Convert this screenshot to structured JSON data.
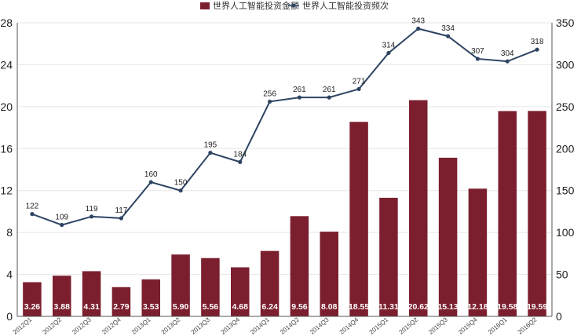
{
  "chart_data": {
    "type": "bar+line",
    "title": "",
    "categories": [
      "2012Q1",
      "2012Q2",
      "2012Q3",
      "2012Q4",
      "2013Q1",
      "2013Q2",
      "2013Q3",
      "2013Q4",
      "2014Q1",
      "2014Q2",
      "2014Q3",
      "2014Q4",
      "2015Q1",
      "2015Q2",
      "2015Q3",
      "2015Q4",
      "2016Q1",
      "2016Q2"
    ],
    "series": [
      {
        "name": "世界人工智能投资金额",
        "type": "bar",
        "axis": "left",
        "color": "#7b1f2e",
        "values": [
          3.26,
          3.88,
          4.31,
          2.79,
          3.53,
          5.9,
          5.56,
          4.68,
          6.24,
          9.56,
          8.08,
          18.55,
          11.31,
          20.62,
          15.13,
          12.18,
          19.58,
          19.59
        ],
        "labels": [
          "3.26",
          "3.88",
          "4.31",
          "2.79",
          "3.53",
          "5.90",
          "5.56",
          "4.68",
          "6.24",
          "9.56",
          "8.08",
          "18.55",
          "11.31",
          "20.62",
          "15.13",
          "12.18",
          "19.58",
          "19.59"
        ]
      },
      {
        "name": "世界人工智能投资频次",
        "type": "line",
        "axis": "right",
        "color": "#2e4463",
        "values": [
          122,
          109,
          119,
          117,
          160,
          150,
          195,
          184,
          256,
          261,
          261,
          271,
          314,
          343,
          334,
          307,
          304,
          318
        ],
        "labels": [
          "122",
          "109",
          "119",
          "117",
          "160",
          "150",
          "195",
          "184",
          "256",
          "261",
          "261",
          "271",
          "314",
          "343",
          "334",
          "307",
          "304",
          "318"
        ]
      }
    ],
    "y_left": {
      "min": 0,
      "max": 28,
      "ticks": [
        "0",
        "4",
        "8",
        "12",
        "16",
        "20",
        "24",
        "28"
      ]
    },
    "y_right": {
      "min": 0,
      "max": 350,
      "ticks": [
        "0",
        "50",
        "100",
        "150",
        "200",
        "250",
        "300",
        "350"
      ]
    },
    "grid": true,
    "legend_position": "top-center"
  }
}
